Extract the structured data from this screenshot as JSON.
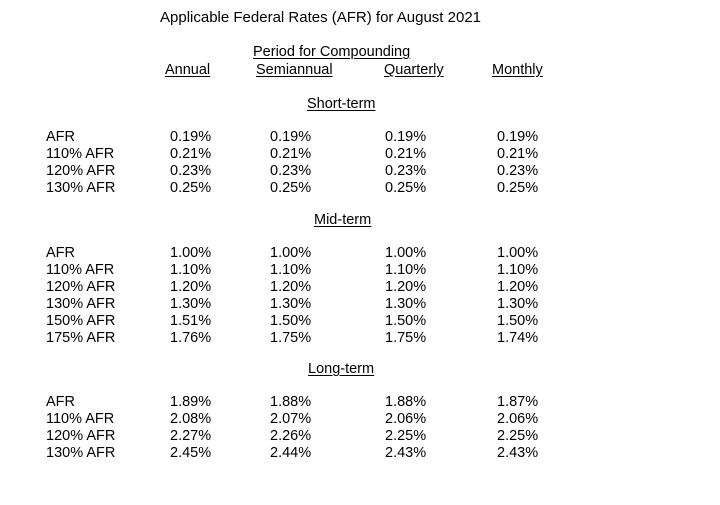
{
  "title": "Applicable Federal Rates (AFR) for August 2021",
  "period_label": "Period for Compounding",
  "columns": [
    "Annual",
    "Semiannual",
    "Quarterly",
    "Monthly"
  ],
  "sections": [
    {
      "name": "Short-term",
      "rows": [
        {
          "label": "AFR",
          "values": [
            "0.19%",
            "0.19%",
            "0.19%",
            "0.19%"
          ]
        },
        {
          "label": "110% AFR",
          "values": [
            "0.21%",
            "0.21%",
            "0.21%",
            "0.21%"
          ]
        },
        {
          "label": "120% AFR",
          "values": [
            "0.23%",
            "0.23%",
            "0.23%",
            "0.23%"
          ]
        },
        {
          "label": "130% AFR",
          "values": [
            "0.25%",
            "0.25%",
            "0.25%",
            "0.25%"
          ]
        }
      ]
    },
    {
      "name": "Mid-term",
      "rows": [
        {
          "label": "AFR",
          "values": [
            "1.00%",
            "1.00%",
            "1.00%",
            "1.00%"
          ]
        },
        {
          "label": "110% AFR",
          "values": [
            "1.10%",
            "1.10%",
            "1.10%",
            "1.10%"
          ]
        },
        {
          "label": "120% AFR",
          "values": [
            "1.20%",
            "1.20%",
            "1.20%",
            "1.20%"
          ]
        },
        {
          "label": "130% AFR",
          "values": [
            "1.30%",
            "1.30%",
            "1.30%",
            "1.30%"
          ]
        },
        {
          "label": "150% AFR",
          "values": [
            "1.51%",
            "1.50%",
            "1.50%",
            "1.50%"
          ]
        },
        {
          "label": "175% AFR",
          "values": [
            "1.76%",
            "1.75%",
            "1.75%",
            "1.74%"
          ]
        }
      ]
    },
    {
      "name": "Long-term",
      "rows": [
        {
          "label": "AFR",
          "values": [
            "1.89%",
            "1.88%",
            "1.88%",
            "1.87%"
          ]
        },
        {
          "label": "110% AFR",
          "values": [
            "2.08%",
            "2.07%",
            "2.06%",
            "2.06%"
          ]
        },
        {
          "label": "120% AFR",
          "values": [
            "2.27%",
            "2.26%",
            "2.25%",
            "2.25%"
          ]
        },
        {
          "label": "130% AFR",
          "values": [
            "2.45%",
            "2.44%",
            "2.43%",
            "2.43%"
          ]
        }
      ]
    }
  ]
}
